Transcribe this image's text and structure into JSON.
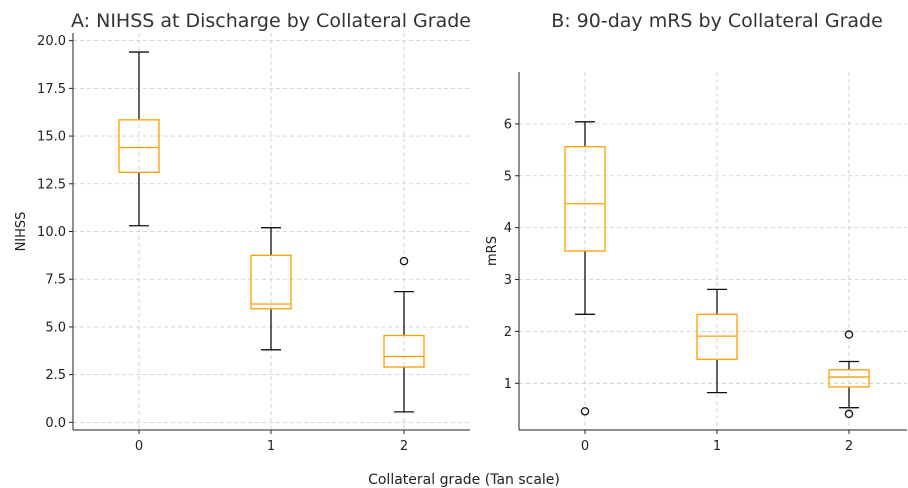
{
  "figure": {
    "xlabel": "Collateral grade (Tan scale)"
  },
  "chart_data": [
    {
      "type": "box",
      "title": "A: NIHSS at Discharge by Collateral Grade",
      "xlabel": "",
      "ylabel": "NIHSS",
      "categories": [
        "0",
        "1",
        "2"
      ],
      "ylim": [
        -0.4,
        20.4
      ],
      "yticks": [
        0.0,
        2.5,
        5.0,
        7.5,
        10.0,
        12.5,
        15.0,
        17.5,
        20.0
      ],
      "ytick_labels": [
        "0.0",
        "2.5",
        "5.0",
        "7.5",
        "10.0",
        "12.5",
        "15.0",
        "17.5",
        "20.0"
      ],
      "grid": true,
      "box_color": "#ff9f00",
      "whisker_color": "#111111",
      "boxes": [
        {
          "category": "0",
          "whislo": 10.3,
          "q1": 13.1,
          "med": 14.4,
          "q3": 15.85,
          "whishi": 19.4,
          "fliers": []
        },
        {
          "category": "1",
          "whislo": 3.8,
          "q1": 5.95,
          "med": 6.2,
          "q3": 8.75,
          "whishi": 10.2,
          "fliers": []
        },
        {
          "category": "2",
          "whislo": 0.55,
          "q1": 2.9,
          "med": 3.45,
          "q3": 4.55,
          "whishi": 6.85,
          "fliers": [
            8.45
          ]
        }
      ]
    },
    {
      "type": "box",
      "title": "B: 90-day mRS by Collateral Grade",
      "xlabel": "",
      "ylabel": "mRS",
      "categories": [
        "0",
        "1",
        "2"
      ],
      "ylim": [
        0.1,
        7.0
      ],
      "yticks": [
        1,
        2,
        3,
        4,
        5,
        6
      ],
      "ytick_labels": [
        "1",
        "2",
        "3",
        "4",
        "5",
        "6"
      ],
      "grid": true,
      "box_color": "#ff9f00",
      "whisker_color": "#111111",
      "boxes": [
        {
          "category": "0",
          "whislo": 2.33,
          "q1": 3.55,
          "med": 4.46,
          "q3": 5.56,
          "whishi": 6.04,
          "fliers": [
            0.46
          ]
        },
        {
          "category": "1",
          "whislo": 0.82,
          "q1": 1.46,
          "med": 1.91,
          "q3": 2.33,
          "whishi": 2.81,
          "fliers": []
        },
        {
          "category": "2",
          "whislo": 0.53,
          "q1": 0.93,
          "med": 1.12,
          "q3": 1.26,
          "whishi": 1.42,
          "fliers": [
            1.94,
            0.41
          ]
        }
      ]
    }
  ]
}
